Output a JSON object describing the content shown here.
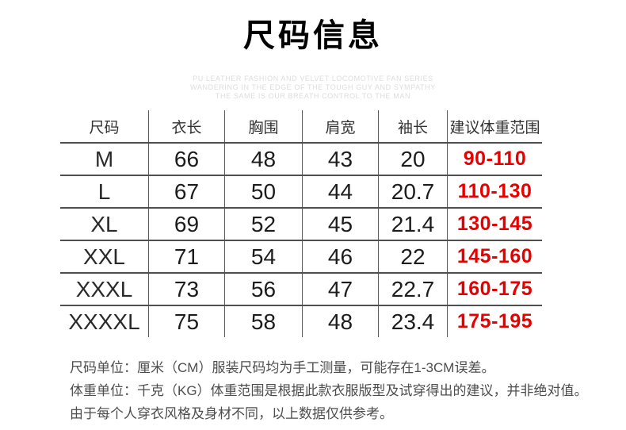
{
  "title": "尺码信息",
  "watermark": {
    "line1": "PU LEATHER FASHION AND VELVET LOCOMOTIVE FAN SERIES",
    "line2": "WANDERING IN THE EDGE OF THE TOUGH GUY AND SYMPATHY",
    "line3": "THE SAME IS OUR BREATH CONTROL TO THE MAN"
  },
  "table": {
    "headers": [
      "尺码",
      "衣长",
      "胸围",
      "肩宽",
      "袖长",
      "建议体重范围"
    ],
    "rows": [
      {
        "size": "M",
        "length": "66",
        "chest": "48",
        "shoulder": "43",
        "sleeve": "20",
        "weight": "90-110"
      },
      {
        "size": "L",
        "length": "67",
        "chest": "50",
        "shoulder": "44",
        "sleeve": "20.7",
        "weight": "110-130"
      },
      {
        "size": "XL",
        "length": "69",
        "chest": "52",
        "shoulder": "45",
        "sleeve": "21.4",
        "weight": "130-145"
      },
      {
        "size": "XXL",
        "length": "71",
        "chest": "54",
        "shoulder": "46",
        "sleeve": "22",
        "weight": "145-160"
      },
      {
        "size": "XXXL",
        "length": "73",
        "chest": "56",
        "shoulder": "47",
        "sleeve": "22.7",
        "weight": "160-175"
      },
      {
        "size": "XXXXL",
        "length": "75",
        "chest": "58",
        "shoulder": "48",
        "sleeve": "23.4",
        "weight": "175-195"
      }
    ]
  },
  "notes": {
    "line1": "尺码单位：厘米（CM）服装尺码均为手工测量，可能存在1-3CM误差。",
    "line2": "体重单位：千克（KG）体重范围是根据此款衣服版型及试穿得出的建议，并非绝对值。",
    "line3": "由于每个人穿衣风格及身材不同，以上数据仅供参考。"
  },
  "colors": {
    "weight_accent_red": "#e60000",
    "grid_line": "#4f4f4f",
    "note_gray": "#4d4d4d",
    "watermark_gray": "#dcdcdc"
  }
}
